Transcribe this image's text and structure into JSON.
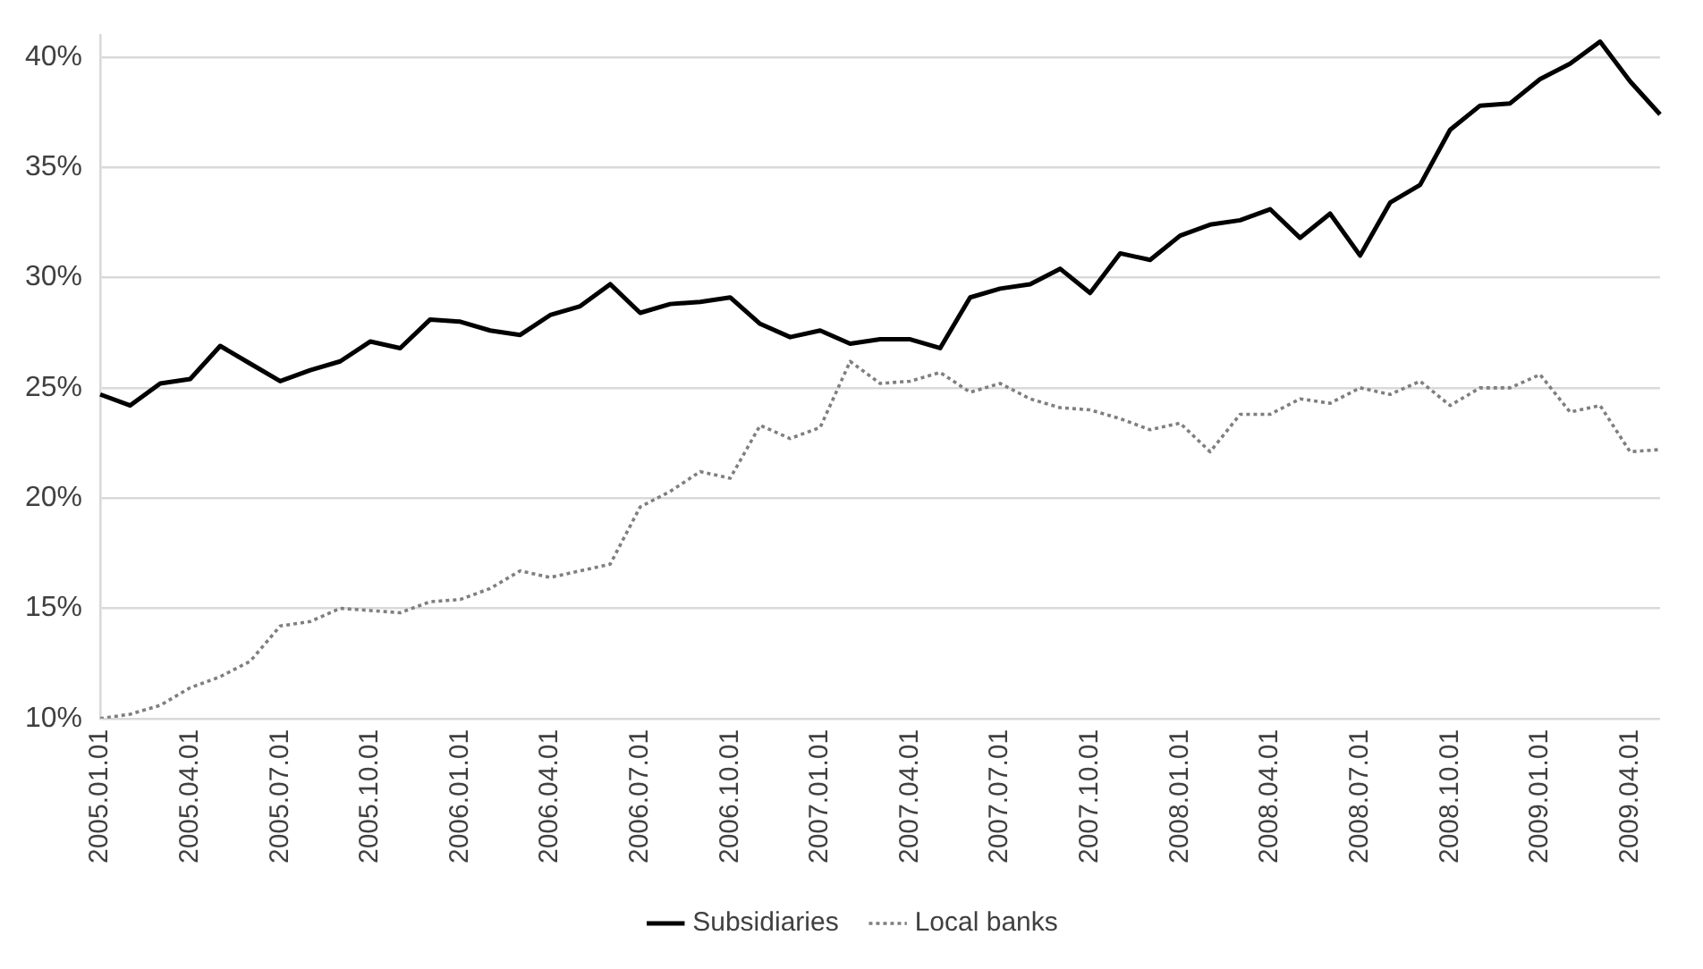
{
  "chart_data": {
    "type": "line",
    "categories": [
      "2005.01.01",
      null,
      null,
      "2005.04.01",
      null,
      null,
      "2005.07.01",
      null,
      null,
      "2005.10.01",
      null,
      null,
      "2006.01.01",
      null,
      null,
      "2006.04.01",
      null,
      null,
      "2006.07.01",
      null,
      null,
      "2006.10.01",
      null,
      null,
      "2007.01.01",
      null,
      null,
      "2007.04.01",
      null,
      null,
      "2007.07.01",
      null,
      null,
      "2007.10.01",
      null,
      null,
      "2008.01.01",
      null,
      null,
      "2008.04.01",
      null,
      null,
      "2008.07.01",
      null,
      null,
      "2008.10.01",
      null,
      null,
      "2009.01.01",
      null,
      null,
      "2009.04.01",
      null
    ],
    "series": [
      {
        "name": "Subsidiaries",
        "color": "#000000",
        "line_style": "solid",
        "values": [
          24.7,
          24.2,
          25.2,
          25.4,
          26.9,
          26.1,
          25.3,
          25.8,
          26.2,
          27.1,
          26.8,
          28.1,
          28.0,
          27.6,
          27.4,
          28.3,
          28.7,
          29.7,
          28.4,
          28.8,
          28.9,
          29.1,
          27.9,
          27.3,
          27.6,
          27.0,
          27.2,
          27.2,
          26.8,
          29.1,
          29.5,
          29.7,
          30.4,
          29.3,
          31.1,
          30.8,
          31.9,
          32.4,
          32.6,
          33.1,
          31.8,
          32.9,
          31.0,
          33.4,
          34.2,
          36.7,
          37.8,
          37.9,
          39.0,
          39.7,
          40.7,
          38.9,
          37.4
        ]
      },
      {
        "name": "Local banks",
        "color": "#7f7f7f",
        "line_style": "dotted",
        "values": [
          10.0,
          10.2,
          10.6,
          11.4,
          11.9,
          12.6,
          14.2,
          14.4,
          15.0,
          14.9,
          14.8,
          15.3,
          15.4,
          15.9,
          16.7,
          16.4,
          16.7,
          17.0,
          19.6,
          20.3,
          21.2,
          20.9,
          23.3,
          22.7,
          23.2,
          26.2,
          25.2,
          25.3,
          25.7,
          24.8,
          25.2,
          24.5,
          24.1,
          24.0,
          23.6,
          23.1,
          23.4,
          22.1,
          23.8,
          23.8,
          24.5,
          24.3,
          25.0,
          24.7,
          25.3,
          24.2,
          25.0,
          25.0,
          25.6,
          23.9,
          24.2,
          22.1,
          22.2
        ]
      }
    ],
    "ylim": [
      10,
      41
    ],
    "yticks": [
      {
        "value": 10,
        "label": "10%"
      },
      {
        "value": 15,
        "label": "15%"
      },
      {
        "value": 20,
        "label": "20%"
      },
      {
        "value": 25,
        "label": "25%"
      },
      {
        "value": 30,
        "label": "30%"
      },
      {
        "value": 35,
        "label": "35%"
      },
      {
        "value": 40,
        "label": "40%"
      }
    ],
    "grid": "y",
    "legend": "bottom",
    "marker": "none"
  }
}
